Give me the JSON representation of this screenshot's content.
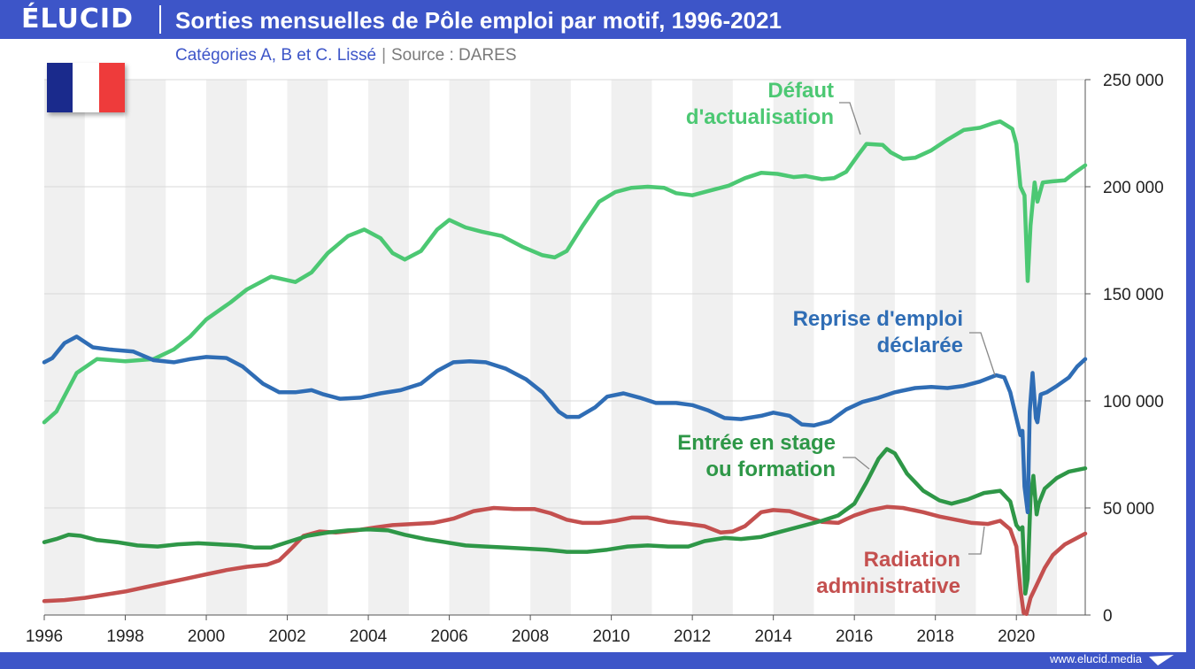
{
  "header": {
    "logo": "ÉLUCID",
    "title": "Sorties mensuelles de Pôle emploi par motif, 1996-2021",
    "subtitle_main": "Catégories A, B et C. Lissé",
    "subtitle_source": "Source : DARES"
  },
  "footer": {
    "url": "www.elucid.media"
  },
  "colors": {
    "frame": "#3d55c8",
    "defaut": "#4cc873",
    "reprise": "#2f6db5",
    "stage": "#2e9747",
    "radiation": "#c4504f",
    "flag_blue": "#1a2a8c",
    "flag_white": "#ffffff",
    "flag_red": "#ee3b3b"
  },
  "chart_data": {
    "type": "line",
    "title": "Sorties mensuelles de Pôle emploi par motif, 1996-2021",
    "xlim": [
      1996,
      2021.7
    ],
    "ylim": [
      0,
      250000
    ],
    "x_ticks": [
      1996,
      1998,
      2000,
      2002,
      2004,
      2006,
      2008,
      2010,
      2012,
      2014,
      2016,
      2018,
      2020
    ],
    "y_ticks": [
      0,
      50000,
      100000,
      150000,
      200000,
      250000
    ],
    "y_tick_labels": [
      "0",
      "50 000",
      "100 000",
      "150 000",
      "200 000",
      "250 000"
    ],
    "grid": "horizontal, alternating year bands",
    "series": [
      {
        "name": "Défaut d'actualisation",
        "label_lines": [
          "Défaut",
          "d'actualisation"
        ],
        "points": [
          [
            1996,
            90000
          ],
          [
            1996.3,
            95000
          ],
          [
            1996.8,
            113000
          ],
          [
            1997.3,
            119500
          ],
          [
            1998,
            118500
          ],
          [
            1998.7,
            119500
          ],
          [
            1999.2,
            124000
          ],
          [
            1999.6,
            130000
          ],
          [
            2000,
            138000
          ],
          [
            2000.6,
            146000
          ],
          [
            2001,
            152000
          ],
          [
            2001.6,
            158000
          ],
          [
            2002.2,
            155500
          ],
          [
            2002.6,
            160000
          ],
          [
            2003,
            169000
          ],
          [
            2003.5,
            177000
          ],
          [
            2003.9,
            180000
          ],
          [
            2004.3,
            176000
          ],
          [
            2004.6,
            169000
          ],
          [
            2004.9,
            166000
          ],
          [
            2005.3,
            170000
          ],
          [
            2005.7,
            180000
          ],
          [
            2006,
            184500
          ],
          [
            2006.4,
            181000
          ],
          [
            2006.8,
            179000
          ],
          [
            2007.3,
            177000
          ],
          [
            2007.8,
            172000
          ],
          [
            2008.3,
            168000
          ],
          [
            2008.6,
            167000
          ],
          [
            2008.9,
            170000
          ],
          [
            2009.3,
            182000
          ],
          [
            2009.7,
            193000
          ],
          [
            2010.1,
            197500
          ],
          [
            2010.5,
            199500
          ],
          [
            2010.9,
            200000
          ],
          [
            2011.3,
            199500
          ],
          [
            2011.6,
            197000
          ],
          [
            2012,
            196000
          ],
          [
            2012.4,
            198000
          ],
          [
            2012.9,
            200500
          ],
          [
            2013.3,
            204000
          ],
          [
            2013.7,
            206500
          ],
          [
            2014.1,
            206000
          ],
          [
            2014.5,
            204500
          ],
          [
            2014.8,
            205000
          ],
          [
            2015.2,
            203500
          ],
          [
            2015.5,
            204000
          ],
          [
            2015.8,
            207000
          ],
          [
            2016.1,
            215000
          ],
          [
            2016.3,
            220000
          ],
          [
            2016.7,
            219500
          ],
          [
            2016.9,
            216000
          ],
          [
            2017.2,
            213000
          ],
          [
            2017.5,
            213500
          ],
          [
            2017.9,
            217000
          ],
          [
            2018.3,
            222000
          ],
          [
            2018.7,
            226500
          ],
          [
            2019.1,
            227500
          ],
          [
            2019.4,
            229500
          ],
          [
            2019.6,
            230500
          ],
          [
            2019.9,
            227000
          ],
          [
            2020,
            220000
          ],
          [
            2020.1,
            200000
          ],
          [
            2020.2,
            196000
          ],
          [
            2020.28,
            156000
          ],
          [
            2020.35,
            182000
          ],
          [
            2020.45,
            202000
          ],
          [
            2020.52,
            193000
          ],
          [
            2020.65,
            202000
          ],
          [
            2020.9,
            202500
          ],
          [
            2021.2,
            203000
          ],
          [
            2021.4,
            206000
          ],
          [
            2021.7,
            210000
          ]
        ]
      },
      {
        "name": "Reprise d'emploi déclarée",
        "label_lines": [
          "Reprise d'emploi",
          "déclarée"
        ],
        "points": [
          [
            1996,
            118000
          ],
          [
            1996.2,
            120000
          ],
          [
            1996.5,
            127000
          ],
          [
            1996.8,
            130000
          ],
          [
            1997.2,
            125000
          ],
          [
            1997.6,
            124000
          ],
          [
            1998.2,
            123000
          ],
          [
            1998.7,
            119000
          ],
          [
            1999.2,
            118000
          ],
          [
            1999.6,
            119500
          ],
          [
            2000,
            120500
          ],
          [
            2000.5,
            120000
          ],
          [
            2000.9,
            116000
          ],
          [
            2001.4,
            108000
          ],
          [
            2001.8,
            104000
          ],
          [
            2002.2,
            104000
          ],
          [
            2002.6,
            105000
          ],
          [
            2002.9,
            103000
          ],
          [
            2003.3,
            101000
          ],
          [
            2003.8,
            101500
          ],
          [
            2004.3,
            103500
          ],
          [
            2004.8,
            105000
          ],
          [
            2005.3,
            108000
          ],
          [
            2005.7,
            114000
          ],
          [
            2006.1,
            118000
          ],
          [
            2006.5,
            118500
          ],
          [
            2006.9,
            118000
          ],
          [
            2007.4,
            115000
          ],
          [
            2007.9,
            110000
          ],
          [
            2008.3,
            104000
          ],
          [
            2008.7,
            95000
          ],
          [
            2008.9,
            92500
          ],
          [
            2009.2,
            92500
          ],
          [
            2009.6,
            97000
          ],
          [
            2009.9,
            102000
          ],
          [
            2010.3,
            103500
          ],
          [
            2010.7,
            101500
          ],
          [
            2011.1,
            99000
          ],
          [
            2011.6,
            99000
          ],
          [
            2012,
            98000
          ],
          [
            2012.4,
            95500
          ],
          [
            2012.8,
            92000
          ],
          [
            2013.2,
            91500
          ],
          [
            2013.7,
            93000
          ],
          [
            2014,
            94500
          ],
          [
            2014.4,
            93000
          ],
          [
            2014.7,
            89000
          ],
          [
            2015,
            88500
          ],
          [
            2015.4,
            90500
          ],
          [
            2015.8,
            96000
          ],
          [
            2016.2,
            99500
          ],
          [
            2016.6,
            101500
          ],
          [
            2017,
            104000
          ],
          [
            2017.5,
            106000
          ],
          [
            2017.9,
            106500
          ],
          [
            2018.3,
            106000
          ],
          [
            2018.7,
            107000
          ],
          [
            2019.1,
            109000
          ],
          [
            2019.5,
            112000
          ],
          [
            2019.7,
            111000
          ],
          [
            2019.85,
            104000
          ],
          [
            2020,
            92000
          ],
          [
            2020.1,
            84000
          ],
          [
            2020.15,
            86000
          ],
          [
            2020.2,
            60000
          ],
          [
            2020.28,
            48000
          ],
          [
            2020.33,
            95000
          ],
          [
            2020.4,
            113000
          ],
          [
            2020.48,
            92000
          ],
          [
            2020.52,
            90000
          ],
          [
            2020.6,
            103000
          ],
          [
            2020.75,
            104000
          ],
          [
            2021,
            107000
          ],
          [
            2021.3,
            111000
          ],
          [
            2021.5,
            116000
          ],
          [
            2021.7,
            119500
          ]
        ]
      },
      {
        "name": "Entrée en stage ou formation",
        "label_lines": [
          "Entrée en stage",
          "ou formation"
        ],
        "points": [
          [
            1996,
            34000
          ],
          [
            1996.3,
            35500
          ],
          [
            1996.6,
            37500
          ],
          [
            1996.9,
            37000
          ],
          [
            1997.3,
            35000
          ],
          [
            1997.8,
            34000
          ],
          [
            1998.3,
            32500
          ],
          [
            1998.8,
            32000
          ],
          [
            1999.3,
            33000
          ],
          [
            1999.8,
            33500
          ],
          [
            2000.3,
            33000
          ],
          [
            2000.8,
            32500
          ],
          [
            2001.2,
            31500
          ],
          [
            2001.6,
            31500
          ],
          [
            2002,
            34000
          ],
          [
            2002.5,
            37000
          ],
          [
            2003,
            38500
          ],
          [
            2003.5,
            39500
          ],
          [
            2004,
            40000
          ],
          [
            2004.5,
            39500
          ],
          [
            2004.9,
            37500
          ],
          [
            2005.4,
            35500
          ],
          [
            2005.9,
            34000
          ],
          [
            2006.4,
            32500
          ],
          [
            2006.9,
            32000
          ],
          [
            2007.4,
            31500
          ],
          [
            2007.9,
            31000
          ],
          [
            2008.4,
            30500
          ],
          [
            2008.9,
            29500
          ],
          [
            2009.4,
            29500
          ],
          [
            2009.9,
            30500
          ],
          [
            2010.4,
            32000
          ],
          [
            2010.9,
            32500
          ],
          [
            2011.4,
            32000
          ],
          [
            2011.9,
            32000
          ],
          [
            2012.3,
            34500
          ],
          [
            2012.8,
            36000
          ],
          [
            2013.2,
            35500
          ],
          [
            2013.7,
            36500
          ],
          [
            2014.2,
            39000
          ],
          [
            2014.7,
            41500
          ],
          [
            2015.2,
            44000
          ],
          [
            2015.6,
            46500
          ],
          [
            2016,
            52000
          ],
          [
            2016.3,
            62000
          ],
          [
            2016.6,
            73000
          ],
          [
            2016.8,
            77500
          ],
          [
            2017,
            75500
          ],
          [
            2017.3,
            66000
          ],
          [
            2017.7,
            58000
          ],
          [
            2018.1,
            53500
          ],
          [
            2018.4,
            52000
          ],
          [
            2018.8,
            54000
          ],
          [
            2019.2,
            57000
          ],
          [
            2019.6,
            58000
          ],
          [
            2019.85,
            53000
          ],
          [
            2020,
            42000
          ],
          [
            2020.08,
            40000
          ],
          [
            2020.15,
            41000
          ],
          [
            2020.22,
            10000
          ],
          [
            2020.28,
            17000
          ],
          [
            2020.35,
            55000
          ],
          [
            2020.42,
            65000
          ],
          [
            2020.5,
            47000
          ],
          [
            2020.55,
            52000
          ],
          [
            2020.7,
            59000
          ],
          [
            2021,
            64000
          ],
          [
            2021.3,
            67000
          ],
          [
            2021.7,
            68500
          ]
        ]
      },
      {
        "name": "Radiation administrative",
        "label_lines": [
          "Radiation",
          "administrative"
        ],
        "points": [
          [
            1996,
            6500
          ],
          [
            1996.5,
            7000
          ],
          [
            1997,
            8000
          ],
          [
            1997.5,
            9500
          ],
          [
            1998,
            11000
          ],
          [
            1998.5,
            13000
          ],
          [
            1999,
            15000
          ],
          [
            1999.5,
            17000
          ],
          [
            2000,
            19000
          ],
          [
            2000.5,
            21000
          ],
          [
            2001,
            22500
          ],
          [
            2001.5,
            23500
          ],
          [
            2001.8,
            25500
          ],
          [
            2002.1,
            31000
          ],
          [
            2002.4,
            37000
          ],
          [
            2002.8,
            39000
          ],
          [
            2003.2,
            38500
          ],
          [
            2003.7,
            39500
          ],
          [
            2004.2,
            41000
          ],
          [
            2004.6,
            42000
          ],
          [
            2005.1,
            42500
          ],
          [
            2005.6,
            43000
          ],
          [
            2006.1,
            45000
          ],
          [
            2006.6,
            48500
          ],
          [
            2007.1,
            50000
          ],
          [
            2007.6,
            49500
          ],
          [
            2008.1,
            49500
          ],
          [
            2008.5,
            47500
          ],
          [
            2008.9,
            44500
          ],
          [
            2009.3,
            43000
          ],
          [
            2009.7,
            43000
          ],
          [
            2010.1,
            44000
          ],
          [
            2010.5,
            45500
          ],
          [
            2010.9,
            45500
          ],
          [
            2011.4,
            43500
          ],
          [
            2011.9,
            42500
          ],
          [
            2012.3,
            41500
          ],
          [
            2012.7,
            38500
          ],
          [
            2013,
            39000
          ],
          [
            2013.3,
            41500
          ],
          [
            2013.7,
            48000
          ],
          [
            2014,
            49000
          ],
          [
            2014.4,
            48500
          ],
          [
            2014.8,
            46000
          ],
          [
            2015.2,
            43500
          ],
          [
            2015.6,
            43000
          ],
          [
            2016,
            46500
          ],
          [
            2016.4,
            49000
          ],
          [
            2016.8,
            50500
          ],
          [
            2017.2,
            50000
          ],
          [
            2017.7,
            48000
          ],
          [
            2018.1,
            46000
          ],
          [
            2018.5,
            44500
          ],
          [
            2018.9,
            43000
          ],
          [
            2019.3,
            42500
          ],
          [
            2019.6,
            44000
          ],
          [
            2019.85,
            40000
          ],
          [
            2020,
            32000
          ],
          [
            2020.1,
            12000
          ],
          [
            2020.18,
            1000
          ],
          [
            2020.25,
            500
          ],
          [
            2020.35,
            8000
          ],
          [
            2020.5,
            14000
          ],
          [
            2020.7,
            22000
          ],
          [
            2020.9,
            28000
          ],
          [
            2021.2,
            33000
          ],
          [
            2021.5,
            36000
          ],
          [
            2021.7,
            38000
          ]
        ]
      }
    ]
  }
}
